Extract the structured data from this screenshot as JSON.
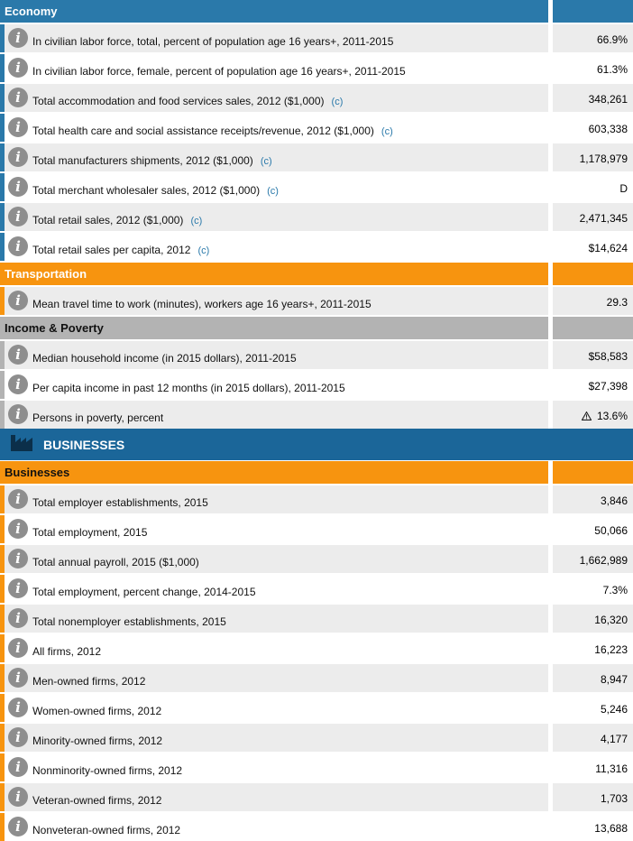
{
  "colors": {
    "economy": "#2a79aa",
    "transportation": "#f7940f",
    "income": "#b3b3b3",
    "businesses": "#f7940f",
    "big_header": "#1b6699"
  },
  "economy": {
    "title": "Economy",
    "rows": [
      {
        "label": "In civilian labor force, total, percent of population age 16 years+, 2011-2015",
        "cref": "",
        "value": "66.9%"
      },
      {
        "label": "In civilian labor force, female, percent of population age 16 years+, 2011-2015",
        "cref": "",
        "value": "61.3%"
      },
      {
        "label": "Total accommodation and food services sales, 2012 ($1,000)",
        "cref": "(c)",
        "value": "348,261"
      },
      {
        "label": "Total health care and social assistance receipts/revenue, 2012 ($1,000)",
        "cref": "(c)",
        "value": "603,338"
      },
      {
        "label": "Total manufacturers shipments, 2012 ($1,000)",
        "cref": "(c)",
        "value": "1,178,979"
      },
      {
        "label": "Total merchant wholesaler sales, 2012 ($1,000)",
        "cref": "(c)",
        "value": "D"
      },
      {
        "label": "Total retail sales, 2012 ($1,000)",
        "cref": "(c)",
        "value": "2,471,345"
      },
      {
        "label": "Total retail sales per capita, 2012",
        "cref": "(c)",
        "value": "$14,624"
      }
    ]
  },
  "transportation": {
    "title": "Transportation",
    "rows": [
      {
        "label": "Mean travel time to work (minutes), workers age 16 years+, 2011-2015",
        "value": "29.3"
      }
    ]
  },
  "income": {
    "title": "Income & Poverty",
    "rows": [
      {
        "label": "Median household income (in 2015 dollars), 2011-2015",
        "value": "$58,583"
      },
      {
        "label": "Per capita income in past 12 months (in 2015 dollars), 2011-2015",
        "value": "$27,398"
      },
      {
        "label": "Persons in poverty, percent",
        "value": "13.6%"
      }
    ]
  },
  "businesses_header": {
    "title": "BUSINESSES"
  },
  "businesses": {
    "title": "Businesses",
    "rows": [
      {
        "label": "Total employer establishments, 2015",
        "value": "3,846"
      },
      {
        "label": "Total employment, 2015",
        "value": "50,066"
      },
      {
        "label": "Total annual payroll, 2015 ($1,000)",
        "value": "1,662,989"
      },
      {
        "label": "Total employment, percent change, 2014-2015",
        "value": "7.3%"
      },
      {
        "label": "Total nonemployer establishments, 2015",
        "value": "16,320"
      },
      {
        "label": "All firms, 2012",
        "value": "16,223"
      },
      {
        "label": "Men-owned firms, 2012",
        "value": "8,947"
      },
      {
        "label": "Women-owned firms, 2012",
        "value": "5,246"
      },
      {
        "label": "Minority-owned firms, 2012",
        "value": "4,177"
      },
      {
        "label": "Nonminority-owned firms, 2012",
        "value": "11,316"
      },
      {
        "label": "Veteran-owned firms, 2012",
        "value": "1,703"
      },
      {
        "label": "Nonveteran-owned firms, 2012",
        "value": "13,688"
      }
    ]
  }
}
